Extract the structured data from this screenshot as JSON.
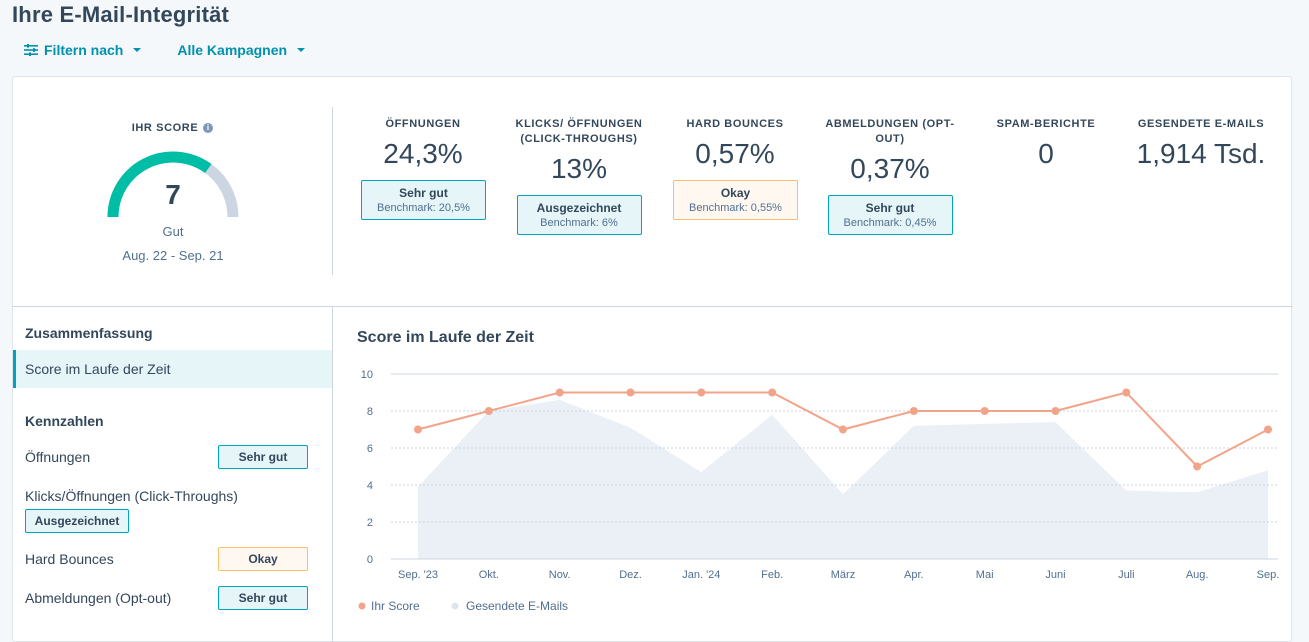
{
  "page": {
    "title": "Ihre E-Mail-Integrität"
  },
  "filters": {
    "filter_label": "Filtern nach",
    "campaign_label": "Alle Kampagnen"
  },
  "score": {
    "title": "IHR SCORE",
    "value": "7",
    "gauge_fraction": 0.7,
    "label": "Gut",
    "range": "Aug. 22 - Sep. 21"
  },
  "metrics": [
    {
      "title": "ÖFFNUNGEN",
      "value": "24,3%",
      "badge": "Sehr gut",
      "benchmark": "Benchmark: 20,5%",
      "tone": "teal"
    },
    {
      "title": "KLICKS/ ÖFFNUNGEN (CLICK-THROUGHS)",
      "value": "13%",
      "badge": "Ausgezeichnet",
      "benchmark": "Benchmark: 6%",
      "tone": "teal"
    },
    {
      "title": "HARD BOUNCES",
      "value": "0,57%",
      "badge": "Okay",
      "benchmark": "Benchmark: 0,55%",
      "tone": "yellow"
    },
    {
      "title": "ABMELDUNGEN (OPT-OUT)",
      "value": "0,37%",
      "badge": "Sehr gut",
      "benchmark": "Benchmark: 0,45%",
      "tone": "teal"
    },
    {
      "title": "SPAM-BERICHTE",
      "value": "0"
    },
    {
      "title": "GESENDETE E-MAILS",
      "value": "1,914 Tsd."
    }
  ],
  "sidebar": {
    "summary_heading": "Zusammenfassung",
    "active_item": "Score im Laufe der Zeit",
    "kpi_heading": "Kennzahlen",
    "items": [
      {
        "label": "Öffnungen",
        "badge": "Sehr gut",
        "tone": "teal"
      },
      {
        "label": "Klicks/Öffnungen (Click-Throughs)",
        "badge": "Ausgezeichnet",
        "tone": "teal"
      },
      {
        "label": "Hard Bounces",
        "badge": "Okay",
        "tone": "yellow"
      },
      {
        "label": "Abmeldungen (Opt-out)",
        "badge": "Sehr gut",
        "tone": "teal"
      }
    ]
  },
  "colors": {
    "accent": "#00a4bd",
    "score_line": "#f2a48a",
    "area": "#eaf0f6",
    "gauge_bg": "#cbd6e2",
    "gauge_fill": "#00bda5"
  },
  "chart_data": {
    "type": "line",
    "title": "Score im Laufe der Zeit",
    "categories": [
      "Sep. '23",
      "Okt.",
      "Nov.",
      "Dez.",
      "Jan. '24",
      "Feb.",
      "März",
      "Apr.",
      "Mai",
      "Juni",
      "Juli",
      "Aug.",
      "Sep."
    ],
    "ylim": [
      0,
      10
    ],
    "yticks": [
      "0",
      "2",
      "4",
      "6",
      "8",
      "10"
    ],
    "grid": true,
    "legend_position": "bottom-left",
    "series": [
      {
        "name": "Ihr Score",
        "kind": "line",
        "values": [
          7,
          8,
          9,
          9,
          9,
          9,
          7,
          8,
          8,
          8,
          9,
          5,
          7
        ]
      },
      {
        "name": "Gesendete E-Mails",
        "kind": "area",
        "values": [
          3.9,
          8.0,
          8.6,
          7.1,
          4.7,
          7.8,
          3.5,
          7.2,
          7.3,
          7.4,
          3.7,
          3.6,
          4.8
        ]
      }
    ]
  }
}
